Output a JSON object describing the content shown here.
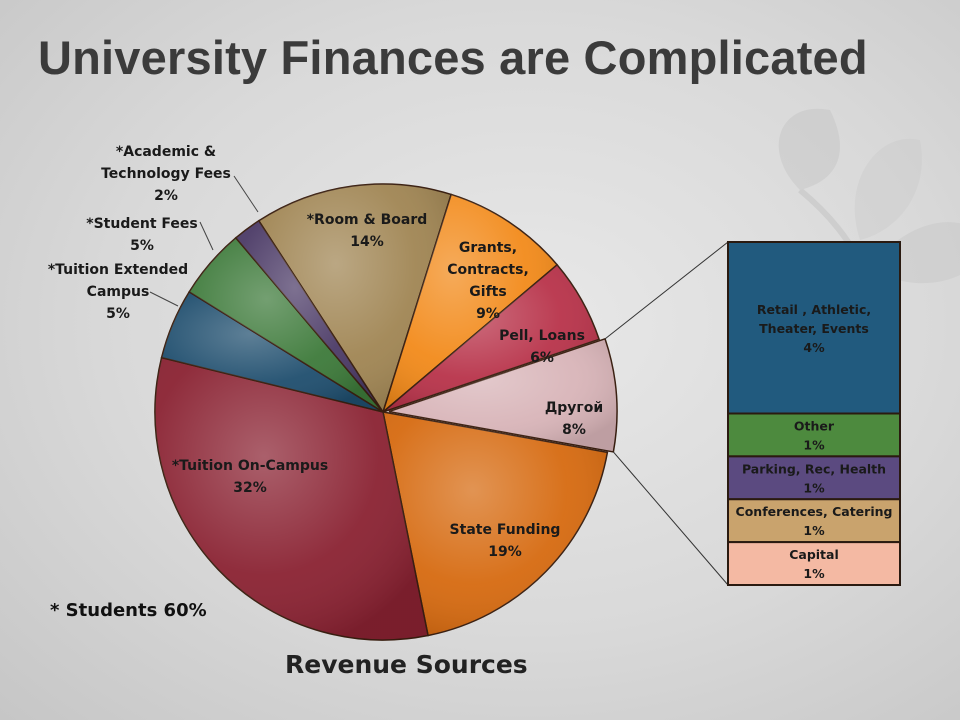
{
  "slide": {
    "title": "University Finances are Complicated",
    "note": "* Students 60%",
    "caption": "Revenue Sources"
  },
  "chart_data": {
    "type": "pie",
    "subtype": "bar-of-pie",
    "slices": [
      {
        "label": [
          "*Room & Board"
        ],
        "pct_label": "14%",
        "value": 14,
        "color": "#a08553"
      },
      {
        "label": [
          "Grants,",
          "Contracts,",
          "Gifts"
        ],
        "pct_label": "9%",
        "value": 9,
        "color": "#f28a1a"
      },
      {
        "label": [
          "Pell, Loans"
        ],
        "pct_label": "6%",
        "value": 6,
        "color": "#b8334a"
      },
      {
        "label": [
          "Другой"
        ],
        "pct_label": "8%",
        "value": 8,
        "color": "#d8b4b8"
      },
      {
        "label": [
          "State Funding"
        ],
        "pct_label": "19%",
        "value": 19,
        "color": "#d66a10"
      },
      {
        "label": [
          "*Tuition On-Campus"
        ],
        "pct_label": "32%",
        "value": 32,
        "color": "#8a2232"
      },
      {
        "label": [
          "*Tuition Extended",
          "Campus"
        ],
        "pct_label": "5%",
        "value": 5,
        "color": "#1f4e6e"
      },
      {
        "label": [
          "*Student Fees"
        ],
        "pct_label": "5%",
        "value": 5,
        "color": "#3d7a3a"
      },
      {
        "label": [
          "*Academic &",
          "Technology Fees"
        ],
        "pct_label": "2%",
        "value": 2,
        "color": "#4b3a66"
      }
    ],
    "breakdown": {
      "of": "Другой",
      "items": [
        {
          "label": [
            "Retail , Athletic,",
            "Theater, Events"
          ],
          "pct_label": "4%",
          "value": 4,
          "color": "#215a7e"
        },
        {
          "label": [
            "Other"
          ],
          "pct_label": "1%",
          "value": 1,
          "color": "#4d8a3e"
        },
        {
          "label": [
            "Parking, Rec, Health"
          ],
          "pct_label": "1%",
          "value": 1,
          "color": "#5b4a80"
        },
        {
          "label": [
            "Conferences, Catering"
          ],
          "pct_label": "1%",
          "value": 1,
          "color": "#c9a36d"
        },
        {
          "label": [
            "Capital"
          ],
          "pct_label": "1%",
          "value": 1,
          "color": "#f4b9a3"
        }
      ]
    }
  }
}
